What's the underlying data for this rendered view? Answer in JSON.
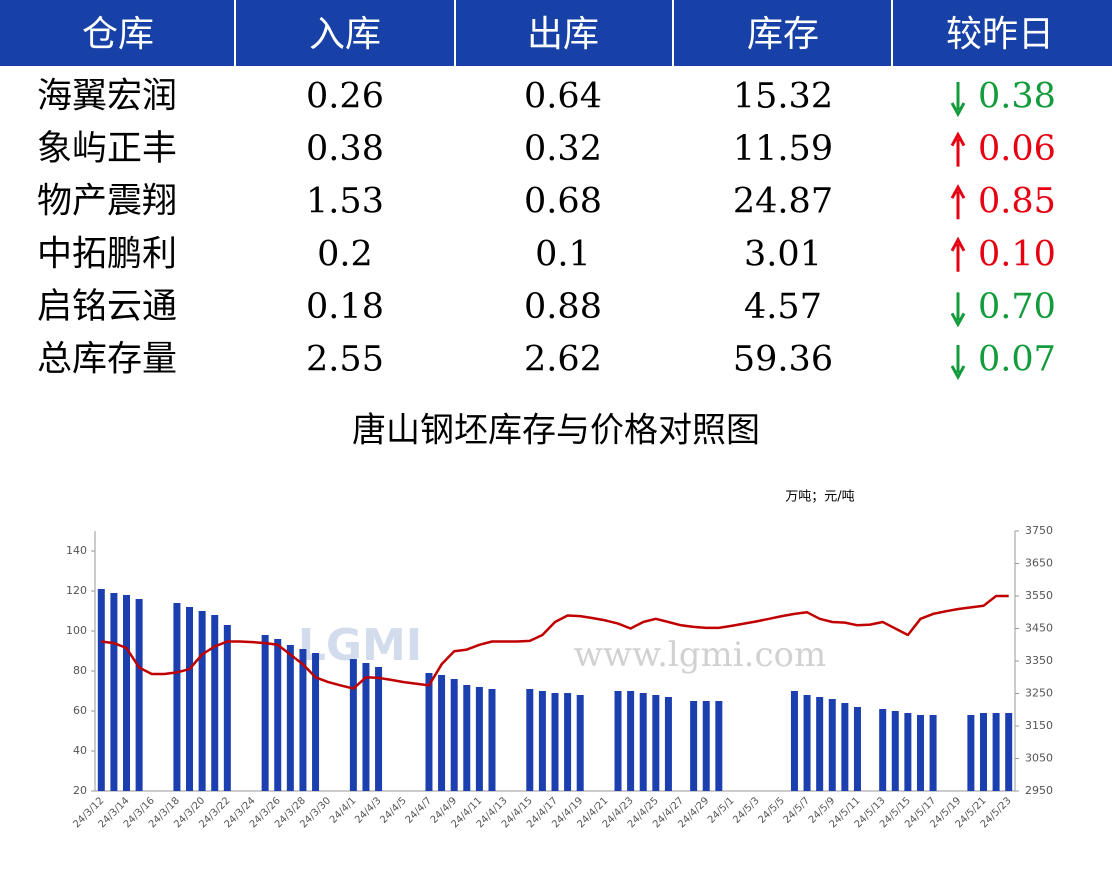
{
  "table": {
    "header": [
      "仓库",
      "入库",
      "出库",
      "库存",
      "较昨日"
    ],
    "rows": [
      [
        "海翼宏润",
        "0.26",
        "0.64",
        "15.32",
        "0.38"
      ],
      [
        "象屿正丰",
        "0.38",
        "0.32",
        "11.59",
        "0.06"
      ],
      [
        "物产震翔",
        "1.53",
        "0.68",
        "24.87",
        "0.85"
      ],
      [
        "中拓鹏利",
        "0.2",
        "0.1",
        "3.01",
        "0.10"
      ],
      [
        "启铭云通",
        "0.18",
        "0.88",
        "4.57",
        "0.70"
      ],
      [
        "总库存量",
        "2.55",
        "2.62",
        "59.36",
        "0.07"
      ]
    ],
    "directions": [
      "down",
      "up",
      "up",
      "up",
      "down",
      "down"
    ],
    "colors": {
      "up": "#e60012",
      "down": "#149b3c"
    }
  },
  "chart_data": {
    "type": "bar",
    "title": "唐山钢坯库存与价格对照图",
    "unit_note": "万吨；元/吨",
    "annotations": [
      "LGMI",
      "www.lgmi.com"
    ],
    "categories": [
      "24/3/12",
      null,
      "24/3/14",
      null,
      "24/3/16",
      null,
      "24/3/18",
      null,
      "24/3/20",
      null,
      "24/3/22",
      null,
      "24/3/24",
      null,
      "24/3/26",
      null,
      "24/3/28",
      null,
      "24/3/30",
      null,
      "24/4/1",
      null,
      "24/4/3",
      null,
      "24/4/5",
      null,
      "24/4/7",
      null,
      "24/4/9",
      null,
      "24/4/11",
      null,
      "24/4/13",
      null,
      "24/4/15",
      null,
      "24/4/17",
      null,
      "24/4/19",
      null,
      "24/4/21",
      null,
      "24/4/23",
      null,
      "24/4/25",
      null,
      "24/4/27",
      null,
      "24/4/29",
      null,
      "24/5/1",
      null,
      "24/5/3",
      null,
      "24/5/5",
      null,
      "24/5/7",
      null,
      "24/5/9",
      null,
      "24/5/11",
      null,
      "24/5/13",
      null,
      "24/5/15",
      null,
      "24/5/17",
      null,
      "24/5/19",
      null,
      "24/5/21",
      null,
      "24/5/23"
    ],
    "series": [
      {
        "color": "#1b3fae",
        "values": [
          121,
          119,
          118,
          116,
          null,
          null,
          114,
          112,
          110,
          108,
          103,
          null,
          null,
          98,
          96,
          93,
          91,
          89,
          null,
          null,
          86,
          84,
          82,
          null,
          null,
          null,
          79,
          78,
          76,
          73,
          72,
          71,
          null,
          null,
          71,
          70,
          69,
          69,
          68,
          null,
          null,
          70,
          70,
          69,
          68,
          67,
          null,
          65,
          65,
          65,
          null,
          null,
          null,
          null,
          null,
          70,
          68,
          67,
          66,
          64,
          62,
          null,
          61,
          60,
          59,
          58,
          58,
          null,
          null,
          58,
          59,
          59,
          59
        ]
      },
      {
        "type": "line",
        "axis": "y2",
        "color": "#c00000",
        "values": [
          3410,
          3405,
          3390,
          3330,
          3310,
          3310,
          3315,
          3325,
          3370,
          3395,
          3410,
          3410,
          3408,
          3405,
          3400,
          3370,
          3340,
          3300,
          3285,
          3275,
          3265,
          3300,
          3298,
          3292,
          3285,
          3280,
          3275,
          3340,
          3380,
          3385,
          3400,
          3410,
          3410,
          3410,
          3412,
          3430,
          3470,
          3490,
          3488,
          3482,
          3475,
          3465,
          3450,
          3470,
          3480,
          3470,
          3460,
          3455,
          3452,
          3452,
          3458,
          3465,
          3472,
          3480,
          3488,
          3495,
          3500,
          3480,
          3470,
          3468,
          3460,
          3462,
          3470,
          3450,
          3430,
          3480,
          3495,
          3503,
          3510,
          3515,
          3520,
          3550,
          3550
        ]
      }
    ],
    "ylim": [
      20,
      150
    ],
    "yticks": [
      20,
      40,
      60,
      80,
      100,
      120,
      140
    ],
    "y2lim": [
      2950,
      3750
    ],
    "y2ticks": [
      2950,
      3050,
      3150,
      3250,
      3350,
      3450,
      3550,
      3650,
      3750
    ]
  }
}
